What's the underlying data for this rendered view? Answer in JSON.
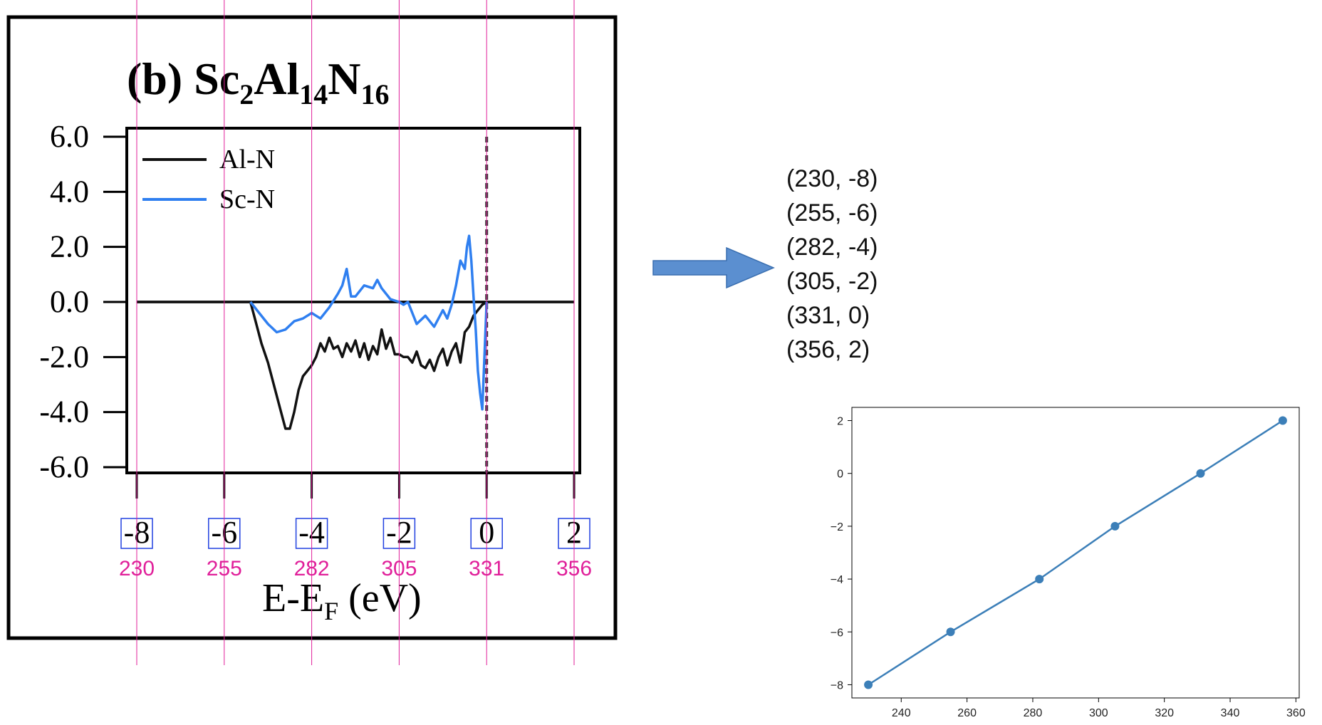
{
  "chart_data": [
    {
      "type": "line",
      "title_parts": {
        "prefix": "(b) Sc",
        "s1": "2",
        "m1": "Al",
        "s2": "14",
        "m2": "N",
        "s3": "16"
      },
      "xlabel_parts": {
        "main": "E-E",
        "sub": "F",
        "unit": " (eV)"
      },
      "xlim": [
        -8,
        2
      ],
      "ylim": [
        -6,
        6
      ],
      "yticks": [
        "6.0",
        "4.0",
        "2.0",
        "0.0",
        "-2.0",
        "-4.0",
        "-6.0"
      ],
      "xticks": [
        "-8",
        "-6",
        "-4",
        "-2",
        "0",
        "2"
      ],
      "pixel_labels": [
        "230",
        "255",
        "282",
        "305",
        "331",
        "356"
      ],
      "legend": {
        "position": "top-left"
      },
      "series": [
        {
          "name": "Al-N",
          "color": "#111111",
          "x": [
            -8,
            -5.4,
            -5.3,
            -5.15,
            -5.0,
            -4.85,
            -4.7,
            -4.6,
            -4.5,
            -4.4,
            -4.3,
            -4.2,
            -4.1,
            -4.0,
            -3.9,
            -3.8,
            -3.7,
            -3.6,
            -3.5,
            -3.4,
            -3.3,
            -3.2,
            -3.1,
            -3.0,
            -2.9,
            -2.8,
            -2.7,
            -2.6,
            -2.5,
            -2.4,
            -2.3,
            -2.2,
            -2.1,
            -2.0,
            -1.9,
            -1.8,
            -1.7,
            -1.6,
            -1.5,
            -1.4,
            -1.3,
            -1.2,
            -1.1,
            -1.0,
            -0.9,
            -0.8,
            -0.7,
            -0.6,
            -0.5,
            -0.4,
            -0.3,
            -0.2,
            -0.1,
            0,
            2
          ],
          "y": [
            0,
            0,
            -0.6,
            -1.5,
            -2.2,
            -3.1,
            -4.0,
            -4.6,
            -4.6,
            -4.0,
            -3.2,
            -2.7,
            -2.5,
            -2.3,
            -2.0,
            -1.5,
            -1.8,
            -1.3,
            -1.7,
            -1.6,
            -2.0,
            -1.5,
            -1.8,
            -1.4,
            -2.0,
            -1.5,
            -2.1,
            -1.6,
            -1.9,
            -1.0,
            -1.7,
            -1.3,
            -1.9,
            -1.9,
            -2.0,
            -2.0,
            -2.2,
            -1.8,
            -2.3,
            -2.4,
            -2.1,
            -2.5,
            -2.0,
            -1.7,
            -2.3,
            -1.8,
            -1.5,
            -2.2,
            -1.1,
            -0.9,
            -0.5,
            -0.3,
            -0.1,
            0,
            0
          ]
        },
        {
          "name": "Sc-N",
          "color": "#2f7ff0",
          "x": [
            -5.4,
            -5.2,
            -5.0,
            -4.8,
            -4.6,
            -4.4,
            -4.2,
            -4.0,
            -3.8,
            -3.6,
            -3.4,
            -3.3,
            -3.2,
            -3.1,
            -3.0,
            -2.8,
            -2.6,
            -2.5,
            -2.4,
            -2.2,
            -2.0,
            -1.9,
            -1.8,
            -1.6,
            -1.4,
            -1.2,
            -1.0,
            -0.9,
            -0.8,
            -0.7,
            -0.6,
            -0.5,
            -0.45,
            -0.4,
            -0.35,
            -0.3,
            -0.25,
            -0.2,
            -0.15,
            -0.1,
            -0.05,
            0
          ],
          "y": [
            0,
            -0.4,
            -0.8,
            -1.1,
            -1.0,
            -0.7,
            -0.6,
            -0.4,
            -0.6,
            -0.2,
            0.3,
            0.6,
            1.2,
            0.2,
            0.2,
            0.6,
            0.5,
            0.8,
            0.5,
            0.1,
            0.0,
            -0.1,
            0.0,
            -0.8,
            -0.5,
            -0.9,
            -0.3,
            -0.6,
            -0.1,
            0.6,
            1.5,
            1.2,
            2.0,
            2.4,
            1.5,
            0.2,
            -1.0,
            -2.5,
            -3.3,
            -3.9,
            -2.0,
            0
          ]
        }
      ]
    },
    {
      "type": "line",
      "x": [
        230,
        255,
        282,
        305,
        331,
        356
      ],
      "y": [
        -8,
        -6,
        -4,
        -2,
        0,
        2
      ],
      "xlim": [
        225,
        361
      ],
      "ylim": [
        -8.5,
        2.5
      ],
      "xticks": [
        "240",
        "260",
        "280",
        "300",
        "320",
        "340",
        "360"
      ],
      "yticks": [
        "2",
        "0",
        "−2",
        "−4",
        "−6",
        "−8"
      ],
      "color": "#3c7fb8"
    }
  ],
  "mapping_text": [
    "(230, -8)",
    "(255, -6)",
    "(282, -4)",
    "(305, -2)",
    "(331, 0)",
    "(356, 2)"
  ],
  "colors": {
    "guide": "#e0209a",
    "box": "#2040e0",
    "arrow": "#5b8fd0"
  }
}
